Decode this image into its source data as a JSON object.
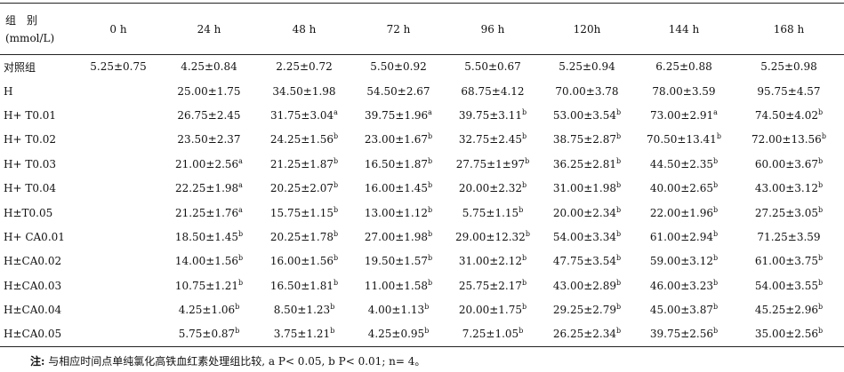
{
  "table": {
    "header": {
      "group": "组　别",
      "unit": "(mmol/L)",
      "columns": [
        "0 h",
        "24 h",
        "48 h",
        "72 h",
        "96 h",
        "120h",
        "144 h",
        "168 h"
      ]
    },
    "rows": [
      {
        "label": "对照组",
        "cells": [
          "5.25±0.75",
          "4.25±0.84",
          "2.25±0.72",
          "5.50±0.92",
          "5.50±0.67",
          "5.25±0.94",
          "6.25±0.88",
          "5.25±0.98"
        ]
      },
      {
        "label": "H",
        "cells": [
          null,
          "25.00±1.75",
          "34.50±1.98",
          "54.50±2.67",
          "68.75±4.12",
          "70.00±3.78",
          "78.00±3.59",
          "95.75±4.57"
        ]
      },
      {
        "label": "H+ T0.01",
        "cells": [
          null,
          "26.75±2.45",
          {
            "text": "31.75±3.04",
            "sup": "a"
          },
          {
            "text": "39.75±1.96",
            "sup": "a"
          },
          {
            "text": "39.75±3.11",
            "sup": "b"
          },
          {
            "text": "53.00±3.54",
            "sup": "b"
          },
          {
            "text": "73.00±2.91",
            "sup": "a"
          },
          {
            "text": "74.50±4.02",
            "sup": "b"
          }
        ]
      },
      {
        "label": "H+ T0.02",
        "cells": [
          null,
          "23.50±2.37",
          {
            "text": "24.25±1.56",
            "sup": "b"
          },
          {
            "text": "23.00±1.67",
            "sup": "b"
          },
          {
            "text": "32.75±2.45",
            "sup": "b"
          },
          {
            "text": "38.75±2.87",
            "sup": "b"
          },
          {
            "text": "70.50±13.41",
            "sup": "b"
          },
          {
            "text": "72.00±13.56",
            "sup": "b"
          }
        ]
      },
      {
        "label": "H+ T0.03",
        "cells": [
          null,
          {
            "text": "21.00±2.56",
            "sup": "a"
          },
          {
            "text": "21.25±1.87",
            "sup": "b"
          },
          {
            "text": "16.50±1.87",
            "sup": "b"
          },
          {
            "text": "27.75±1±97",
            "sup": "b"
          },
          {
            "text": "36.25±2.81",
            "sup": "b"
          },
          {
            "text": "44.50±2.35",
            "sup": "b"
          },
          {
            "text": "60.00±3.67",
            "sup": "b"
          }
        ]
      },
      {
        "label": "H+ T0.04",
        "cells": [
          null,
          {
            "text": "22.25±1.98",
            "sup": "a"
          },
          {
            "text": "20.25±2.07",
            "sup": "b"
          },
          {
            "text": "16.00±1.45",
            "sup": "b"
          },
          {
            "text": "20.00±2.32",
            "sup": "b"
          },
          {
            "text": "31.00±1.98",
            "sup": "b"
          },
          {
            "text": "40.00±2.65",
            "sup": "b"
          },
          {
            "text": "43.00±3.12",
            "sup": "b"
          }
        ]
      },
      {
        "label": "H±T0.05",
        "cells": [
          null,
          {
            "text": "21.25±1.76",
            "sup": "a"
          },
          {
            "text": "15.75±1.15",
            "sup": "b"
          },
          {
            "text": "13.00±1.12",
            "sup": "b"
          },
          {
            "text": "5.75±1.15",
            "sup": "b"
          },
          {
            "text": "20.00±2.34",
            "sup": "b"
          },
          {
            "text": "22.00±1.96",
            "sup": "b"
          },
          {
            "text": "27.25±3.05",
            "sup": "b"
          }
        ]
      },
      {
        "label": "H+ CA0.01",
        "cells": [
          null,
          {
            "text": "18.50±1.45",
            "sup": "b"
          },
          {
            "text": "20.25±1.78",
            "sup": "b"
          },
          {
            "text": "27.00±1.98",
            "sup": "b"
          },
          {
            "text": "29.00±12.32",
            "sup": "b"
          },
          {
            "text": "54.00±3.34",
            "sup": "b"
          },
          {
            "text": "61.00±2.94",
            "sup": "b"
          },
          "71.25±3.59"
        ]
      },
      {
        "label": "H±CA0.02",
        "cells": [
          null,
          {
            "text": "14.00±1.56",
            "sup": "b"
          },
          {
            "text": "16.00±1.56",
            "sup": "b"
          },
          {
            "text": "19.50±1.57",
            "sup": "b"
          },
          {
            "text": "31.00±2.12",
            "sup": "b"
          },
          {
            "text": "47.75±3.54",
            "sup": "b"
          },
          {
            "text": "59.00±3.12",
            "sup": "b"
          },
          {
            "text": "61.00±3.75",
            "sup": "b"
          }
        ]
      },
      {
        "label": "H±CA0.03",
        "cells": [
          null,
          {
            "text": "10.75±1.21",
            "sup": "b"
          },
          {
            "text": "16.50±1.81",
            "sup": "b"
          },
          {
            "text": "11.00±1.58",
            "sup": "b"
          },
          {
            "text": "25.75±2.17",
            "sup": "b"
          },
          {
            "text": "43.00±2.89",
            "sup": "b"
          },
          {
            "text": "46.00±3.23",
            "sup": "b"
          },
          {
            "text": "54.00±3.55",
            "sup": "b"
          }
        ]
      },
      {
        "label": "H±CA0.04",
        "cells": [
          null,
          {
            "text": "4.25±1.06",
            "sup": "b"
          },
          {
            "text": "8.50±1.23",
            "sup": "b"
          },
          {
            "text": "4.00±1.13",
            "sup": "b"
          },
          {
            "text": "20.00±1.75",
            "sup": "b"
          },
          {
            "text": "29.25±2.79",
            "sup": "b"
          },
          {
            "text": "45.00±3.87",
            "sup": "b"
          },
          {
            "text": "45.25±2.96",
            "sup": "b"
          }
        ]
      },
      {
        "label": "H±CA0.05",
        "cells": [
          null,
          {
            "text": "5.75±0.87",
            "sup": "b"
          },
          {
            "text": "3.75±1.21",
            "sup": "b"
          },
          {
            "text": "4.25±0.95",
            "sup": "b"
          },
          {
            "text": "7.25±1.05",
            "sup": "b"
          },
          {
            "text": "26.25±2.34",
            "sup": "b"
          },
          {
            "text": "39.75±2.56",
            "sup": "b"
          },
          {
            "text": "35.00±2.56",
            "sup": "b"
          }
        ]
      }
    ],
    "note": {
      "label": "注:",
      "text": "与相应时间点单纯氯化高铁血红素处理组比较, a P< 0.05, b P< 0.01; n= 4。"
    }
  }
}
